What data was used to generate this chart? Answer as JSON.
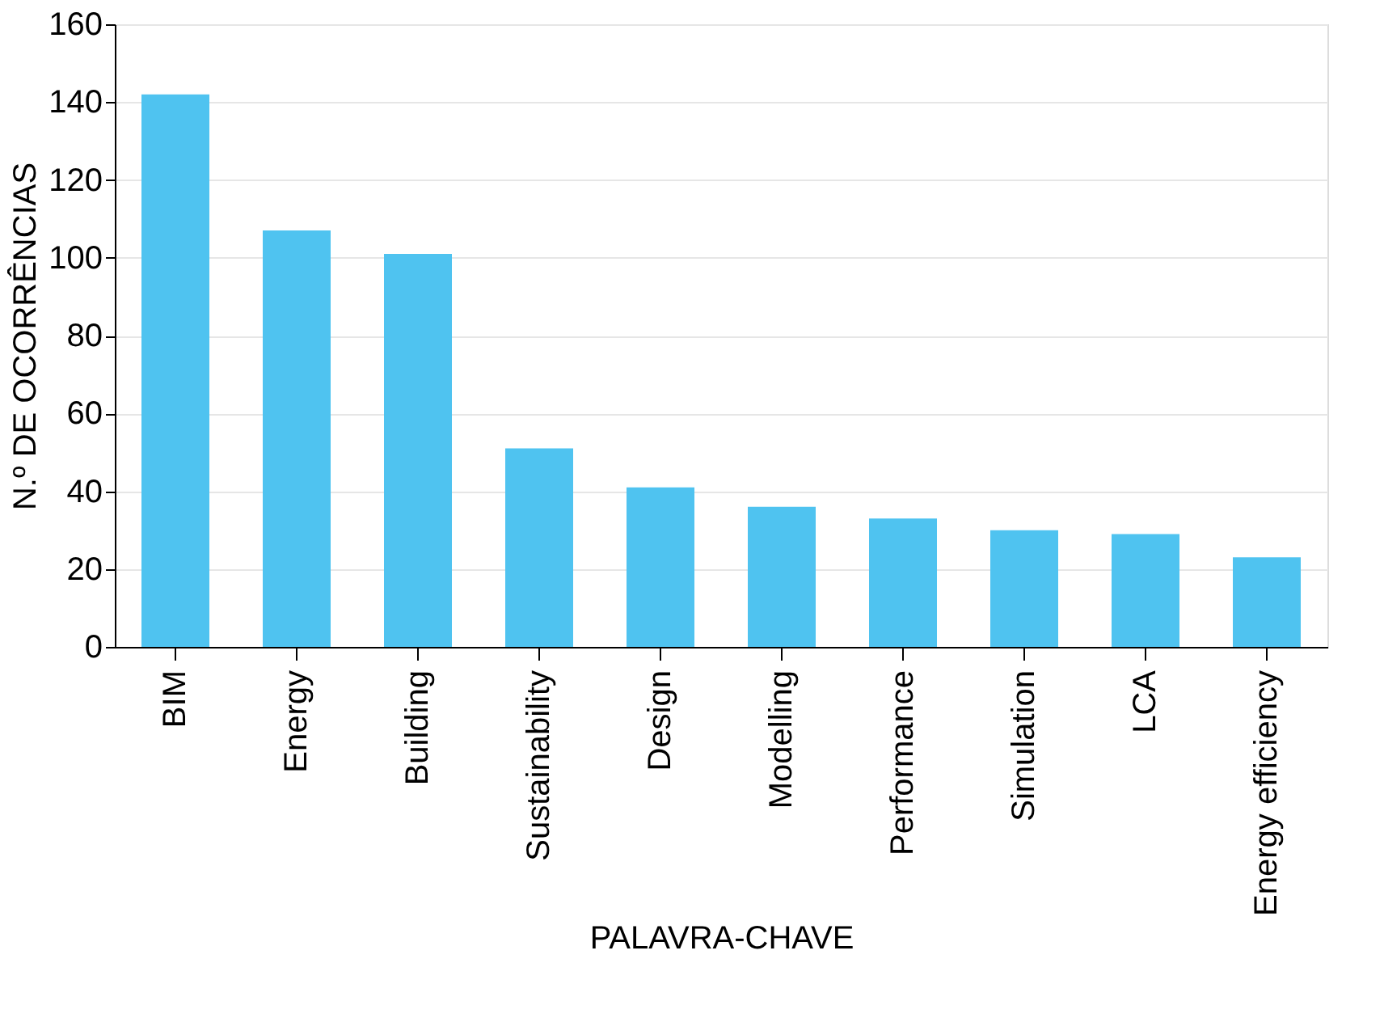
{
  "chart_data": {
    "type": "bar",
    "xlabel": "PALAVRA-CHAVE",
    "ylabel": "N.º DE OCORRÊNCIAS",
    "categories": [
      "BIM",
      "Energy",
      "Building",
      "Sustainability",
      "Design",
      "Modelling",
      "Performance",
      "Simulation",
      "LCA",
      "Energy efficiency"
    ],
    "values": [
      142,
      107,
      101,
      51,
      41,
      36,
      33,
      30,
      29,
      23
    ],
    "color": "#4fc3f0",
    "ylim": [
      0,
      160
    ],
    "yticks": [
      0,
      20,
      40,
      60,
      80,
      100,
      120,
      140,
      160
    ],
    "grid": "y"
  }
}
